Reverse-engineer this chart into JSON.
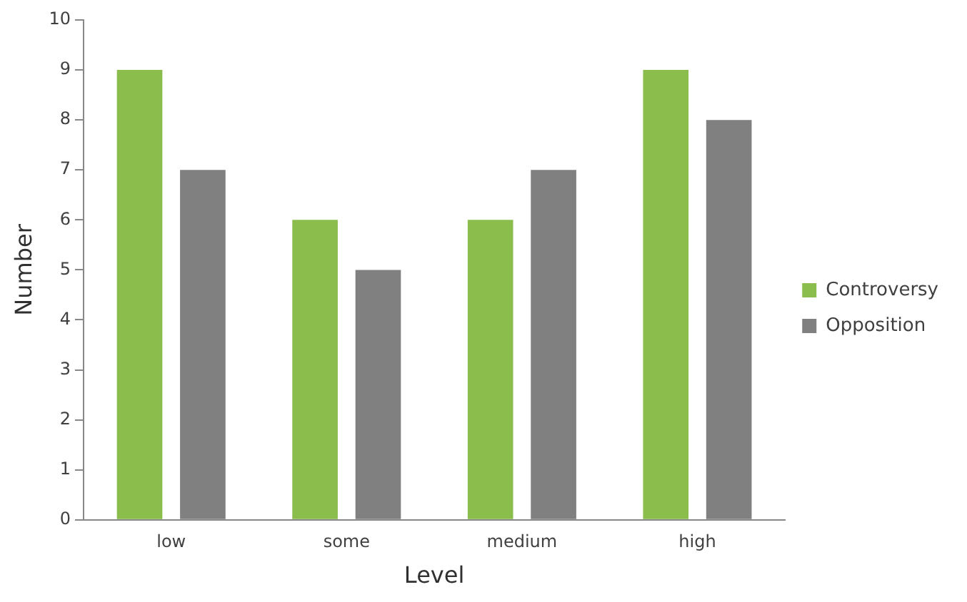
{
  "chart_data": {
    "type": "bar",
    "xlabel": "Level",
    "ylabel": "Number",
    "categories": [
      "low",
      "some",
      "medium",
      "high"
    ],
    "series": [
      {
        "name": "Controversy",
        "color": "#8bbd4c",
        "values": [
          9,
          6,
          6,
          9
        ]
      },
      {
        "name": "Opposition",
        "color": "#808080",
        "values": [
          7,
          5,
          7,
          8
        ]
      }
    ],
    "ylim": [
      0,
      10
    ],
    "yticks": [
      0,
      1,
      2,
      3,
      4,
      5,
      6,
      7,
      8,
      9,
      10
    ],
    "grid": false,
    "legend": "right"
  }
}
